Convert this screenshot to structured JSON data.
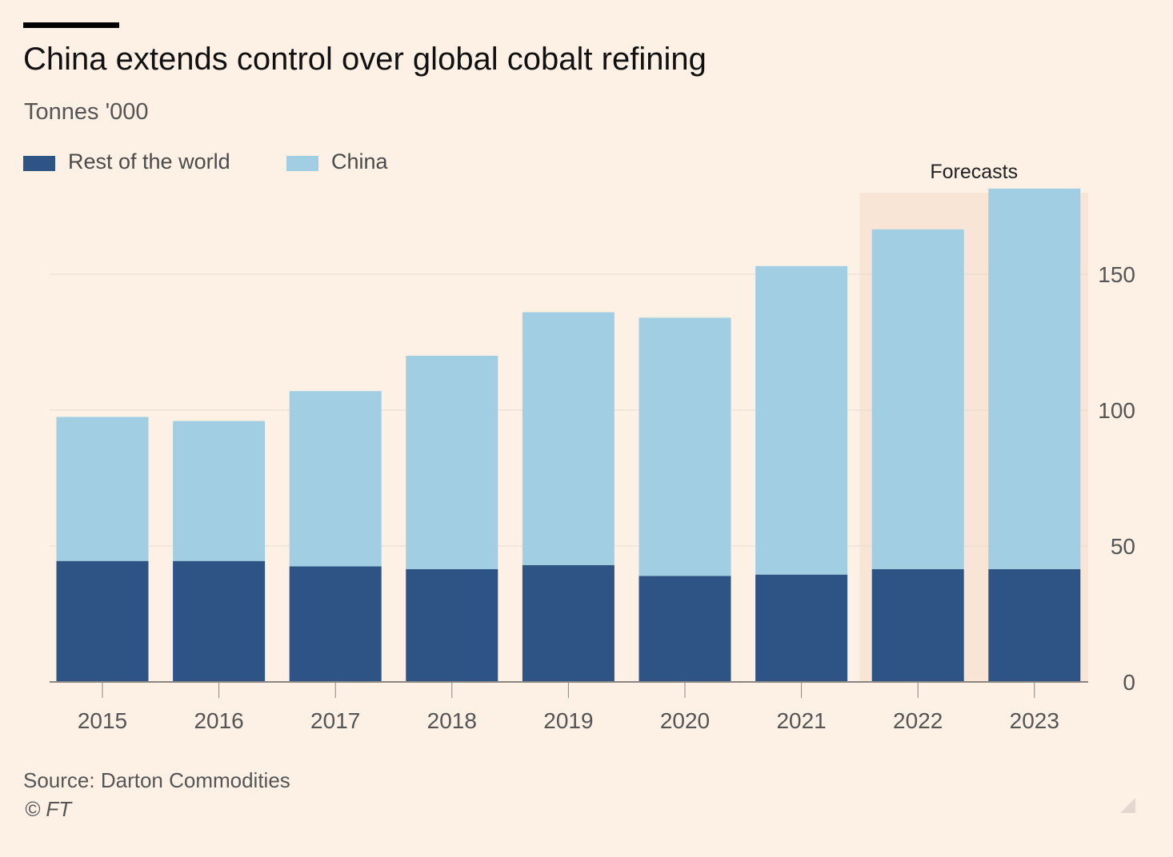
{
  "title": "China extends control over global cobalt refining",
  "subtitle": "Tonnes '000",
  "legend": [
    {
      "label": "Rest of the world",
      "color": "#2e5385"
    },
    {
      "label": "China",
      "color": "#a1cee3"
    }
  ],
  "source": "Source: Darton Commodities",
  "copyright": "© FT",
  "colors": {
    "background": "#fdf1e6",
    "forecast_band": "#f8e5d5",
    "gridline": "#e9dccf",
    "axis": "#8a8580"
  },
  "icons": {
    "corner": "resize-corner-icon"
  },
  "chart_data": {
    "type": "bar",
    "stacked": true,
    "categories": [
      "2015",
      "2016",
      "2017",
      "2018",
      "2019",
      "2020",
      "2021",
      "2022",
      "2023"
    ],
    "series": [
      {
        "name": "Rest of the world",
        "values": [
          44.5,
          44.5,
          42.5,
          41.5,
          43,
          39,
          39.5,
          41.5,
          41.5
        ]
      },
      {
        "name": "China",
        "values": [
          53,
          51.5,
          64.5,
          78.5,
          93,
          95,
          113.5,
          125,
          140
        ]
      }
    ],
    "yticks": [
      0,
      50,
      100,
      150
    ],
    "ylim": [
      0,
      180
    ],
    "y_axis_side": "right",
    "grid": true,
    "legend_position": "top-left",
    "annotation": {
      "label": "Forecasts",
      "categories": [
        "2022",
        "2023"
      ]
    }
  }
}
